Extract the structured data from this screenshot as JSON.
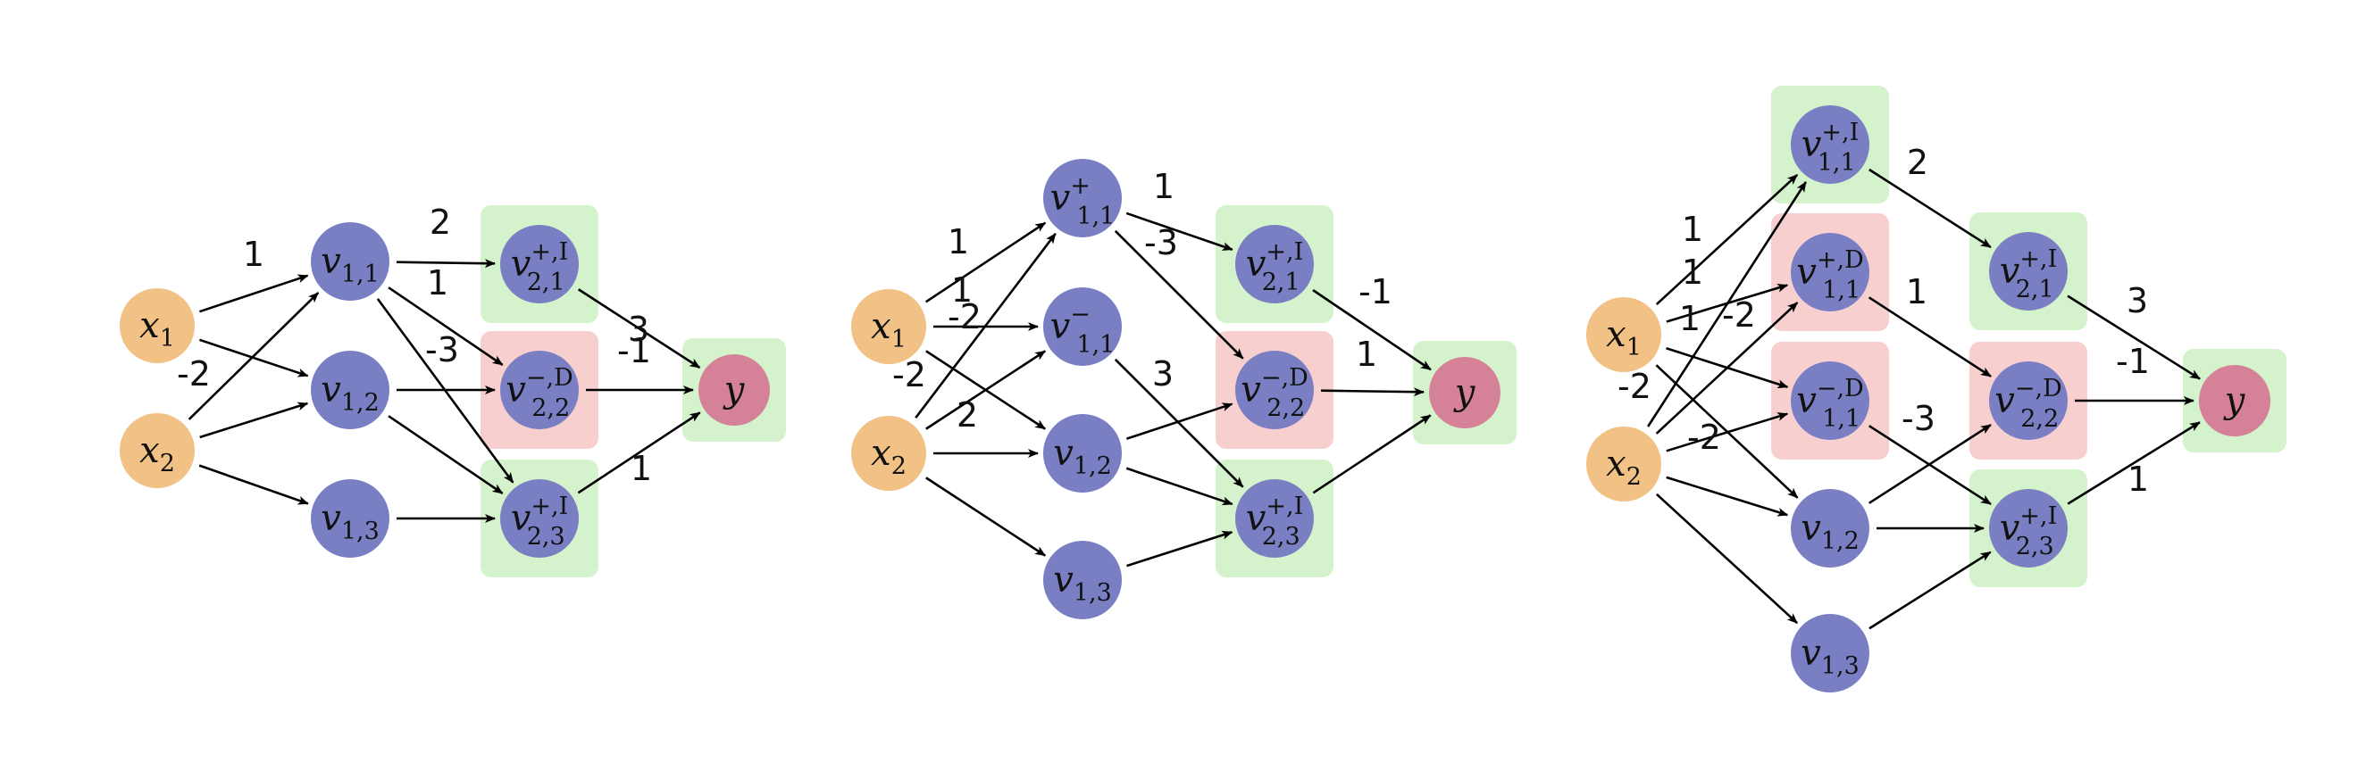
{
  "colors": {
    "input": "#f2c185",
    "hidden": "#7a7fc4",
    "output": "#d58299",
    "box_I": "#d4f2cb",
    "box_D": "#f7cfcf"
  },
  "diagrams": [
    {
      "id": "d1",
      "nodes": [
        {
          "id": "x1",
          "kind": "input",
          "label": {
            "base": "x",
            "sub": "1",
            "sup": ""
          }
        },
        {
          "id": "x2",
          "kind": "input",
          "label": {
            "base": "x",
            "sub": "2",
            "sup": ""
          }
        },
        {
          "id": "v11",
          "kind": "hidden",
          "label": {
            "base": "v",
            "sub": "1,1",
            "sup": ""
          }
        },
        {
          "id": "v12",
          "kind": "hidden",
          "label": {
            "base": "v",
            "sub": "1,2",
            "sup": ""
          }
        },
        {
          "id": "v13",
          "kind": "hidden",
          "label": {
            "base": "v",
            "sub": "1,3",
            "sup": ""
          }
        },
        {
          "id": "v21",
          "kind": "hidden",
          "box": "I",
          "label": {
            "base": "v",
            "sub": "2,1",
            "sup": "+,I"
          }
        },
        {
          "id": "v22",
          "kind": "hidden",
          "box": "D",
          "label": {
            "base": "v",
            "sub": "2,2",
            "sup": "−,D"
          }
        },
        {
          "id": "v23",
          "kind": "hidden",
          "box": "I",
          "label": {
            "base": "v",
            "sub": "2,3",
            "sup": "+,I"
          }
        },
        {
          "id": "y",
          "kind": "output",
          "box": "I",
          "label": {
            "base": "y",
            "sub": "",
            "sup": ""
          }
        }
      ],
      "edges": [
        {
          "from": "x1",
          "to": "v11",
          "w": "1"
        },
        {
          "from": "x1",
          "to": "v12",
          "w": ""
        },
        {
          "from": "x2",
          "to": "v11",
          "w": "-2"
        },
        {
          "from": "x2",
          "to": "v12",
          "w": ""
        },
        {
          "from": "x2",
          "to": "v13",
          "w": ""
        },
        {
          "from": "v11",
          "to": "v21",
          "w": "2"
        },
        {
          "from": "v11",
          "to": "v22",
          "w": "1"
        },
        {
          "from": "v11",
          "to": "v23",
          "w": ""
        },
        {
          "from": "v12",
          "to": "v22",
          "w": "-3"
        },
        {
          "from": "v12",
          "to": "v23",
          "w": ""
        },
        {
          "from": "v13",
          "to": "v23",
          "w": ""
        },
        {
          "from": "v21",
          "to": "y",
          "w": "3"
        },
        {
          "from": "v22",
          "to": "y",
          "w": "-1"
        },
        {
          "from": "v23",
          "to": "y",
          "w": "1"
        }
      ]
    },
    {
      "id": "d2",
      "nodes": [
        {
          "id": "x1",
          "kind": "input",
          "label": {
            "base": "x",
            "sub": "1",
            "sup": ""
          }
        },
        {
          "id": "x2",
          "kind": "input",
          "label": {
            "base": "x",
            "sub": "2",
            "sup": ""
          }
        },
        {
          "id": "v11p",
          "kind": "hidden",
          "label": {
            "base": "v",
            "sub": "1,1",
            "sup": "+"
          }
        },
        {
          "id": "v11m",
          "kind": "hidden",
          "label": {
            "base": "v",
            "sub": "1,1",
            "sup": "−"
          }
        },
        {
          "id": "v12",
          "kind": "hidden",
          "label": {
            "base": "v",
            "sub": "1,2",
            "sup": ""
          }
        },
        {
          "id": "v13",
          "kind": "hidden",
          "label": {
            "base": "v",
            "sub": "1,3",
            "sup": ""
          }
        },
        {
          "id": "v21",
          "kind": "hidden",
          "box": "I",
          "label": {
            "base": "v",
            "sub": "2,1",
            "sup": "+,I"
          }
        },
        {
          "id": "v22",
          "kind": "hidden",
          "box": "D",
          "label": {
            "base": "v",
            "sub": "2,2",
            "sup": "−,D"
          }
        },
        {
          "id": "v23",
          "kind": "hidden",
          "box": "I",
          "label": {
            "base": "v",
            "sub": "2,3",
            "sup": "+,I"
          }
        },
        {
          "id": "y",
          "kind": "output",
          "box": "I",
          "label": {
            "base": "y",
            "sub": "",
            "sup": ""
          }
        }
      ],
      "edges": [
        {
          "from": "x1",
          "to": "v11p",
          "w": "1"
        },
        {
          "from": "x1",
          "to": "v11m",
          "w": "1"
        },
        {
          "from": "x1",
          "to": "v12",
          "w": ""
        },
        {
          "from": "x2",
          "to": "v11p",
          "w": "-2"
        },
        {
          "from": "x2",
          "to": "v11m",
          "w": "-2"
        },
        {
          "from": "x2",
          "to": "v12",
          "w": ""
        },
        {
          "from": "x2",
          "to": "v13",
          "w": ""
        },
        {
          "from": "v11p",
          "to": "v21",
          "w": "2"
        },
        {
          "from": "v11p",
          "to": "v22",
          "w": "1"
        },
        {
          "from": "v11m",
          "to": "v23",
          "w": "-3"
        },
        {
          "from": "v12",
          "to": "v22",
          "w": ""
        },
        {
          "from": "v12",
          "to": "v23",
          "w": ""
        },
        {
          "from": "v13",
          "to": "v23",
          "w": ""
        },
        {
          "from": "v21",
          "to": "y",
          "w": "3"
        },
        {
          "from": "v22",
          "to": "y",
          "w": "-1"
        },
        {
          "from": "v23",
          "to": "y",
          "w": "1"
        }
      ]
    },
    {
      "id": "d3",
      "nodes": [
        {
          "id": "x1",
          "kind": "input",
          "label": {
            "base": "x",
            "sub": "1",
            "sup": ""
          }
        },
        {
          "id": "x2",
          "kind": "input",
          "label": {
            "base": "x",
            "sub": "2",
            "sup": ""
          }
        },
        {
          "id": "v11pI",
          "kind": "hidden",
          "box": "I",
          "label": {
            "base": "v",
            "sub": "1,1",
            "sup": "+,I"
          }
        },
        {
          "id": "v11pD",
          "kind": "hidden",
          "box": "D",
          "label": {
            "base": "v",
            "sub": "1,1",
            "sup": "+,D"
          }
        },
        {
          "id": "v11mD",
          "kind": "hidden",
          "box": "D",
          "label": {
            "base": "v",
            "sub": "1,1",
            "sup": "−,D"
          }
        },
        {
          "id": "v12",
          "kind": "hidden",
          "label": {
            "base": "v",
            "sub": "1,2",
            "sup": ""
          }
        },
        {
          "id": "v13",
          "kind": "hidden",
          "label": {
            "base": "v",
            "sub": "1,3",
            "sup": ""
          }
        },
        {
          "id": "v21",
          "kind": "hidden",
          "box": "I",
          "label": {
            "base": "v",
            "sub": "2,1",
            "sup": "+,I"
          }
        },
        {
          "id": "v22",
          "kind": "hidden",
          "box": "D",
          "label": {
            "base": "v",
            "sub": "2,2",
            "sup": "−,D"
          }
        },
        {
          "id": "v23",
          "kind": "hidden",
          "box": "I",
          "label": {
            "base": "v",
            "sub": "2,3",
            "sup": "+,I"
          }
        },
        {
          "id": "y",
          "kind": "output",
          "box": "I",
          "label": {
            "base": "y",
            "sub": "",
            "sup": ""
          }
        }
      ],
      "edges": [
        {
          "from": "x1",
          "to": "v11pI",
          "w": "1"
        },
        {
          "from": "x1",
          "to": "v11pD",
          "w": "1"
        },
        {
          "from": "x1",
          "to": "v11mD",
          "w": "1"
        },
        {
          "from": "x1",
          "to": "v12",
          "w": ""
        },
        {
          "from": "x2",
          "to": "v11pI",
          "w": "-2"
        },
        {
          "from": "x2",
          "to": "v11pD",
          "w": "-2"
        },
        {
          "from": "x2",
          "to": "v11mD",
          "w": "-2"
        },
        {
          "from": "x2",
          "to": "v12",
          "w": ""
        },
        {
          "from": "x2",
          "to": "v13",
          "w": ""
        },
        {
          "from": "v11pI",
          "to": "v21",
          "w": "2"
        },
        {
          "from": "v11pD",
          "to": "v22",
          "w": "1"
        },
        {
          "from": "v11mD",
          "to": "v23",
          "w": "-3"
        },
        {
          "from": "v12",
          "to": "v22",
          "w": ""
        },
        {
          "from": "v12",
          "to": "v23",
          "w": ""
        },
        {
          "from": "v13",
          "to": "v23",
          "w": ""
        },
        {
          "from": "v21",
          "to": "y",
          "w": "3"
        },
        {
          "from": "v22",
          "to": "y",
          "w": "-1"
        },
        {
          "from": "v23",
          "to": "y",
          "w": "1"
        }
      ]
    }
  ]
}
